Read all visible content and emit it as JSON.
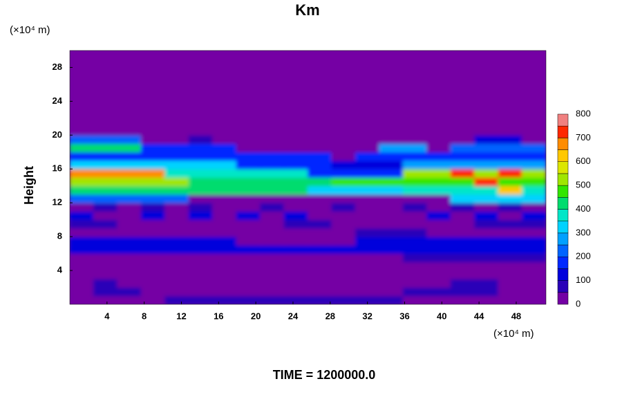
{
  "chart_data": {
    "type": "heatmap",
    "title": "Km",
    "x_label": "(×10⁴ m)",
    "y_label": "Height",
    "y_unit_label": "(×10⁴ m)",
    "footer": "TIME = 1200000.0",
    "x": [
      1.28,
      3.84,
      6.4,
      8.96,
      11.52,
      14.08,
      16.64,
      19.2,
      21.76,
      24.32,
      26.88,
      29.44,
      32,
      34.56,
      37.12,
      39.68,
      42.24,
      44.8,
      47.36,
      49.92
    ],
    "y": [
      0.5,
      1.5,
      2.5,
      3.5,
      4.5,
      5.5,
      6.5,
      7.5,
      8.5,
      9.5,
      10.5,
      11.5,
      12.5,
      13.5,
      14.5,
      15.5,
      16.5,
      17.5,
      18.5,
      19.5,
      20.5,
      21.5,
      22.5,
      23.5,
      24.5,
      25.5,
      26.5,
      27.5,
      28.5,
      29.5
    ],
    "z": [
      [
        0,
        0,
        0,
        0,
        60,
        60,
        60,
        60,
        60,
        60,
        60,
        60,
        60,
        60,
        0,
        0,
        0,
        0,
        0,
        0
      ],
      [
        0,
        50,
        50,
        0,
        0,
        0,
        0,
        0,
        0,
        0,
        0,
        0,
        0,
        0,
        60,
        60,
        60,
        60,
        0,
        0
      ],
      [
        0,
        50,
        0,
        0,
        0,
        0,
        0,
        0,
        0,
        0,
        0,
        0,
        0,
        0,
        0,
        0,
        50,
        50,
        0,
        0
      ],
      [
        0,
        0,
        0,
        0,
        0,
        0,
        0,
        0,
        0,
        0,
        0,
        0,
        0,
        0,
        0,
        0,
        0,
        0,
        0,
        0
      ],
      [
        0,
        0,
        0,
        0,
        0,
        0,
        0,
        0,
        0,
        0,
        0,
        0,
        0,
        0,
        0,
        0,
        0,
        0,
        0,
        0
      ],
      [
        0,
        0,
        0,
        0,
        0,
        0,
        0,
        0,
        0,
        0,
        0,
        0,
        0,
        0,
        80,
        80,
        80,
        80,
        80,
        80
      ],
      [
        130,
        130,
        120,
        110,
        100,
        100,
        100,
        100,
        100,
        100,
        100,
        100,
        100,
        100,
        110,
        110,
        100,
        100,
        100,
        110
      ],
      [
        120,
        120,
        120,
        120,
        110,
        100,
        100,
        0,
        0,
        0,
        0,
        0,
        100,
        110,
        110,
        100,
        100,
        100,
        100,
        100
      ],
      [
        0,
        0,
        0,
        0,
        0,
        0,
        0,
        0,
        0,
        0,
        0,
        0,
        60,
        60,
        60,
        0,
        0,
        0,
        0,
        0
      ],
      [
        80,
        80,
        0,
        0,
        0,
        0,
        0,
        0,
        0,
        80,
        80,
        0,
        0,
        0,
        0,
        0,
        0,
        80,
        80,
        80
      ],
      [
        100,
        0,
        0,
        100,
        0,
        100,
        0,
        100,
        0,
        100,
        0,
        0,
        0,
        0,
        0,
        100,
        0,
        100,
        0,
        100
      ],
      [
        0,
        50,
        0,
        50,
        0,
        50,
        0,
        0,
        50,
        0,
        0,
        50,
        0,
        0,
        50,
        0,
        50,
        0,
        50,
        0
      ],
      [
        200,
        200,
        200,
        200,
        200,
        0,
        0,
        0,
        0,
        0,
        0,
        0,
        0,
        0,
        0,
        0,
        300,
        300,
        300,
        300
      ],
      [
        400,
        400,
        400,
        400,
        400,
        400,
        400,
        400,
        400,
        400,
        300,
        300,
        300,
        300,
        350,
        350,
        350,
        350,
        600,
        350
      ],
      [
        500,
        500,
        500,
        500,
        500,
        400,
        400,
        400,
        400,
        400,
        400,
        450,
        450,
        450,
        450,
        450,
        450,
        700,
        450,
        450
      ],
      [
        650,
        650,
        650,
        650,
        350,
        350,
        350,
        350,
        350,
        350,
        150,
        150,
        150,
        150,
        500,
        500,
        700,
        500,
        700,
        500
      ],
      [
        300,
        300,
        300,
        300,
        300,
        300,
        300,
        150,
        150,
        150,
        150,
        100,
        100,
        100,
        250,
        250,
        250,
        250,
        250,
        250
      ],
      [
        150,
        150,
        150,
        150,
        150,
        150,
        150,
        150,
        150,
        150,
        150,
        0,
        150,
        150,
        150,
        150,
        150,
        150,
        150,
        150
      ],
      [
        400,
        400,
        400,
        150,
        150,
        150,
        150,
        0,
        0,
        0,
        0,
        0,
        0,
        250,
        250,
        0,
        200,
        200,
        200,
        200
      ],
      [
        200,
        200,
        200,
        0,
        0,
        50,
        0,
        0,
        0,
        0,
        0,
        0,
        0,
        0,
        0,
        0,
        0,
        100,
        100,
        0
      ],
      [
        0,
        0,
        0,
        0,
        0,
        0,
        0,
        0,
        0,
        0,
        0,
        0,
        0,
        0,
        0,
        0,
        0,
        0,
        0,
        0
      ],
      [
        0,
        0,
        0,
        0,
        0,
        0,
        0,
        0,
        0,
        0,
        0,
        0,
        0,
        0,
        0,
        0,
        0,
        0,
        0,
        0
      ],
      [
        0,
        0,
        0,
        0,
        0,
        0,
        0,
        0,
        0,
        0,
        0,
        0,
        0,
        0,
        0,
        0,
        0,
        0,
        0,
        0
      ],
      [
        0,
        0,
        0,
        0,
        0,
        0,
        0,
        0,
        0,
        0,
        0,
        0,
        0,
        0,
        0,
        0,
        0,
        0,
        0,
        0
      ],
      [
        0,
        0,
        0,
        0,
        0,
        0,
        0,
        0,
        0,
        0,
        0,
        0,
        0,
        0,
        0,
        0,
        0,
        0,
        0,
        0
      ],
      [
        0,
        0,
        0,
        0,
        0,
        0,
        0,
        0,
        0,
        0,
        0,
        0,
        0,
        0,
        0,
        0,
        0,
        0,
        0,
        0
      ],
      [
        0,
        0,
        0,
        0,
        0,
        0,
        0,
        0,
        0,
        0,
        0,
        0,
        0,
        0,
        0,
        0,
        0,
        0,
        0,
        0
      ],
      [
        0,
        0,
        0,
        0,
        0,
        0,
        0,
        0,
        0,
        0,
        0,
        0,
        0,
        0,
        0,
        0,
        0,
        0,
        0,
        0
      ],
      [
        0,
        0,
        0,
        0,
        0,
        0,
        0,
        0,
        0,
        0,
        0,
        0,
        0,
        0,
        0,
        0,
        0,
        0,
        0,
        0
      ],
      [
        0,
        0,
        0,
        0,
        0,
        0,
        0,
        0,
        0,
        0,
        0,
        0,
        0,
        0,
        0,
        0,
        0,
        0,
        0,
        0
      ]
    ],
    "levels": [
      0,
      50,
      100,
      150,
      200,
      250,
      300,
      350,
      400,
      450,
      500,
      550,
      600,
      650,
      700,
      750,
      800
    ],
    "colors": [
      "#7400a4",
      "#2a00b8",
      "#0000dc",
      "#0028ff",
      "#0064ff",
      "#00a0ff",
      "#00d2ff",
      "#00e6c8",
      "#00dc6e",
      "#32e600",
      "#a0e600",
      "#dce600",
      "#ffc800",
      "#ff8c00",
      "#ff2800",
      "#f08080"
    ],
    "colorbar_ticks": [
      0,
      100,
      200,
      300,
      400,
      500,
      600,
      700,
      800
    ],
    "xlim": [
      0,
      51.2
    ],
    "ylim": [
      0,
      30
    ],
    "xticks": [
      4,
      8,
      12,
      16,
      20,
      24,
      28,
      32,
      36,
      40,
      44,
      48
    ],
    "yticks": [
      4,
      8,
      12,
      16,
      20,
      24,
      28
    ]
  }
}
